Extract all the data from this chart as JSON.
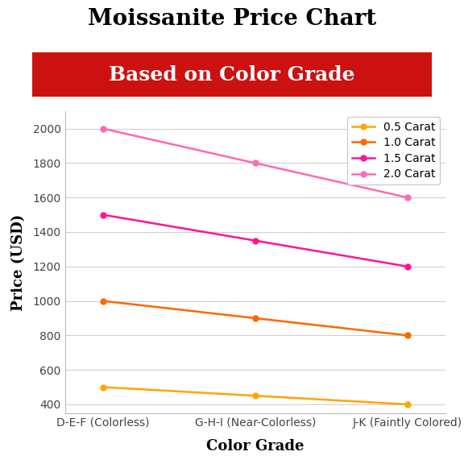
{
  "title": "Moissanite Price Chart",
  "subtitle": "Based on Color Grade",
  "subtitle_bg": "#cc1111",
  "subtitle_color": "#ffffff",
  "xlabel": "Color Grade",
  "ylabel": "Price (USD)",
  "categories": [
    "D-E-F (Colorless)",
    "G-H-I (Near-Colorless)",
    "J-K (Faintly Colored)"
  ],
  "series": [
    {
      "label": "0.5 Carat",
      "color": "#FFA500",
      "values": [
        500,
        450,
        400
      ]
    },
    {
      "label": "1.0 Carat",
      "color": "#FF6600",
      "values": [
        1000,
        900,
        800
      ]
    },
    {
      "label": "1.5 Carat",
      "color": "#FF1493",
      "values": [
        1500,
        1350,
        1200
      ]
    },
    {
      "label": "2.0 Carat",
      "color": "#FF69B4",
      "values": [
        2000,
        1800,
        1600
      ]
    }
  ],
  "ylim": [
    350,
    2100
  ],
  "yticks": [
    400,
    600,
    800,
    1000,
    1200,
    1400,
    1600,
    1800,
    2000
  ],
  "title_fontsize": 20,
  "subtitle_fontsize": 18,
  "axis_label_fontsize": 13,
  "tick_fontsize": 10,
  "legend_fontsize": 10,
  "background_color": "#ffffff",
  "grid_color": "#cccccc"
}
